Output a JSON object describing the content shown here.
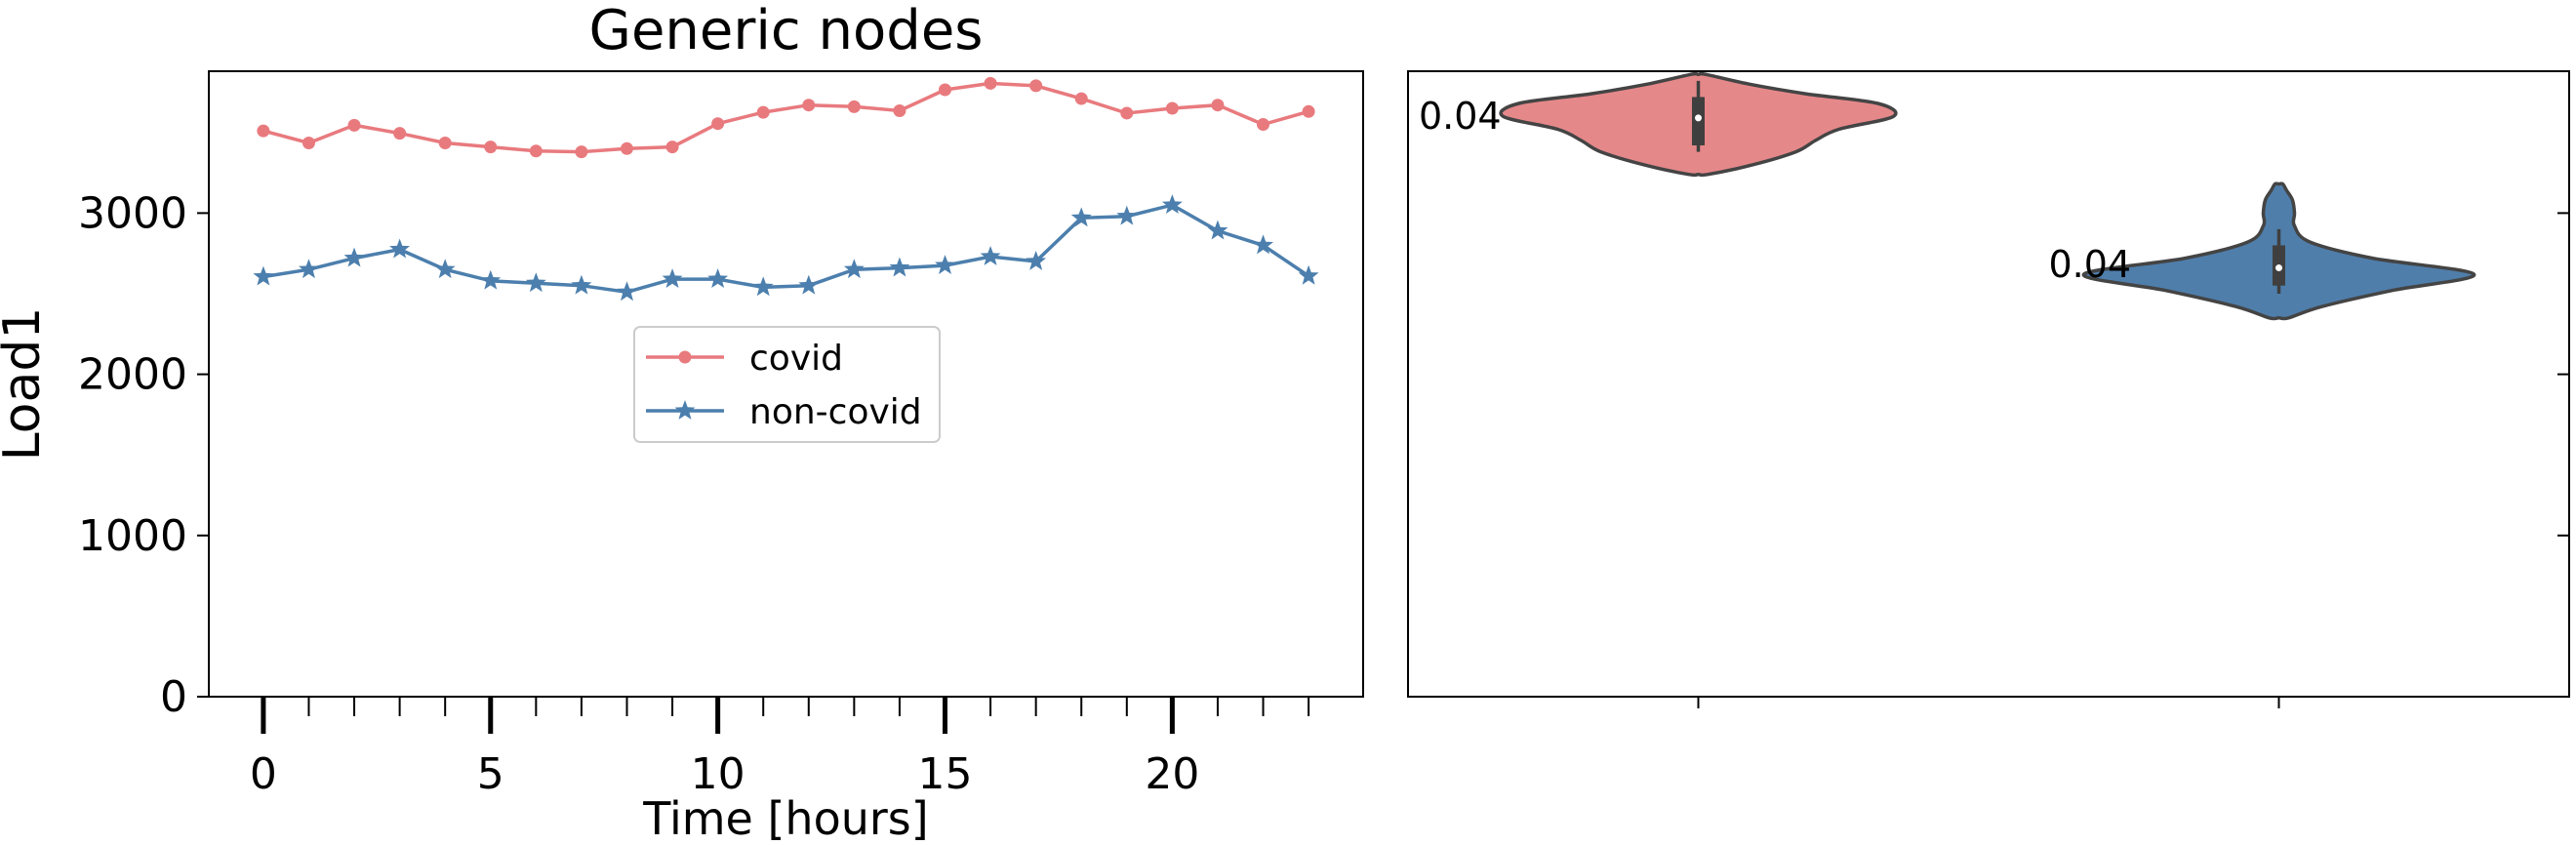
{
  "chart_data": [
    {
      "type": "line",
      "title": "Generic nodes",
      "xlabel": "Time [hours]",
      "ylabel": "Load1",
      "xlim": [
        -1.2,
        24.2
      ],
      "ylim": [
        0,
        3880
      ],
      "xticks_major": [
        0,
        5,
        10,
        15,
        20
      ],
      "xticks_minor": [
        1,
        2,
        3,
        4,
        6,
        7,
        8,
        9,
        11,
        12,
        13,
        14,
        16,
        17,
        18,
        19,
        21,
        22,
        23
      ],
      "yticks": [
        0,
        1000,
        2000,
        3000
      ],
      "grid": false,
      "legend_position": "center",
      "x": [
        0,
        1,
        2,
        3,
        4,
        5,
        6,
        7,
        8,
        9,
        10,
        11,
        12,
        13,
        14,
        15,
        16,
        17,
        18,
        19,
        20,
        21,
        22,
        23
      ],
      "series": [
        {
          "name": "covid",
          "color": "#e87a7e",
          "marker": "circle",
          "values": [
            3510,
            3435,
            3545,
            3495,
            3435,
            3410,
            3385,
            3380,
            3400,
            3410,
            3555,
            3625,
            3670,
            3660,
            3635,
            3765,
            3805,
            3790,
            3710,
            3620,
            3650,
            3670,
            3550,
            3630
          ]
        },
        {
          "name": "non-covid",
          "color": "#4c7fad",
          "marker": "star",
          "values": [
            2605,
            2650,
            2720,
            2775,
            2650,
            2580,
            2565,
            2550,
            2510,
            2590,
            2590,
            2540,
            2550,
            2650,
            2660,
            2675,
            2730,
            2700,
            2970,
            2980,
            3050,
            2890,
            2800,
            2610
          ]
        }
      ]
    },
    {
      "type": "violin",
      "ylim": [
        0,
        3880
      ],
      "grid": false,
      "violins": [
        {
          "name": "covid",
          "color": "#e5888a",
          "density_label": "0.04",
          "q1": 3420,
          "median": 3590,
          "q3": 3720,
          "whisker_low": 3380,
          "whisker_high": 3820,
          "profile": [
            [
              3240,
              0.05
            ],
            [
              3300,
              0.28
            ],
            [
              3380,
              0.5
            ],
            [
              3450,
              0.6
            ],
            [
              3520,
              0.72
            ],
            [
              3600,
              1.0
            ],
            [
              3680,
              0.92
            ],
            [
              3740,
              0.55
            ],
            [
              3800,
              0.26
            ],
            [
              3860,
              0.04
            ]
          ]
        },
        {
          "name": "non-covid",
          "color": "#4f7eab",
          "density_label": "0.04",
          "q1": 2550,
          "median": 2660,
          "q3": 2800,
          "whisker_low": 2500,
          "whisker_high": 2900,
          "profile": [
            [
              2350,
              0.05
            ],
            [
              2420,
              0.22
            ],
            [
              2520,
              0.58
            ],
            [
              2620,
              1.0
            ],
            [
              2720,
              0.48
            ],
            [
              2820,
              0.16
            ],
            [
              2920,
              0.08
            ],
            [
              3000,
              0.08
            ],
            [
              3080,
              0.07
            ],
            [
              3140,
              0.04
            ],
            [
              3180,
              0.02
            ]
          ]
        }
      ]
    }
  ]
}
